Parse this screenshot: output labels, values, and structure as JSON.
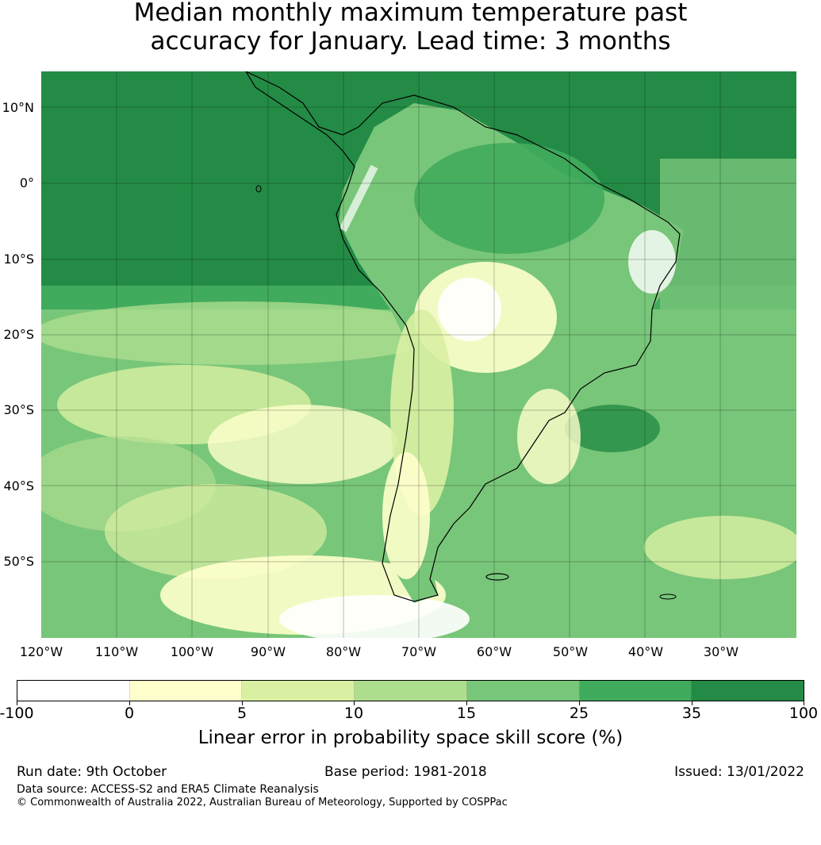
{
  "title": {
    "line1": "Median monthly maximum temperature past",
    "line2": "accuracy for January. Lead time: 3 months"
  },
  "map": {
    "lat_labels": [
      "10°N",
      "0°",
      "10°S",
      "20°S",
      "30°S",
      "40°S",
      "50°S"
    ],
    "lon_labels": [
      "120°W",
      "110°W",
      "100°W",
      "90°W",
      "80°W",
      "70°W",
      "60°W",
      "50°W",
      "40°W",
      "30°W"
    ],
    "ocean_color": "#238b45",
    "land_outline_color": "#000000"
  },
  "colorbar": {
    "tick_labels": [
      "-100",
      "0",
      "5",
      "10",
      "15",
      "25",
      "35",
      "100"
    ],
    "colors": [
      "#ffffff",
      "#ffffcc",
      "#d9f0a3",
      "#addd8e",
      "#78c679",
      "#41ab5d",
      "#238b45"
    ],
    "label": "Linear error in probability space skill score (%)"
  },
  "footer": {
    "run_date": "Run date: 9th October",
    "base_period": "Base period: 1981-2018",
    "issued": "Issued: 13/01/2022",
    "data_source": "Data source: ACCESS-S2 and ERA5 Climate Reanalysis",
    "copyright": "© Commonwealth of Australia 2022, Australian Bureau of Meteorology, Supported by COSPPac"
  }
}
